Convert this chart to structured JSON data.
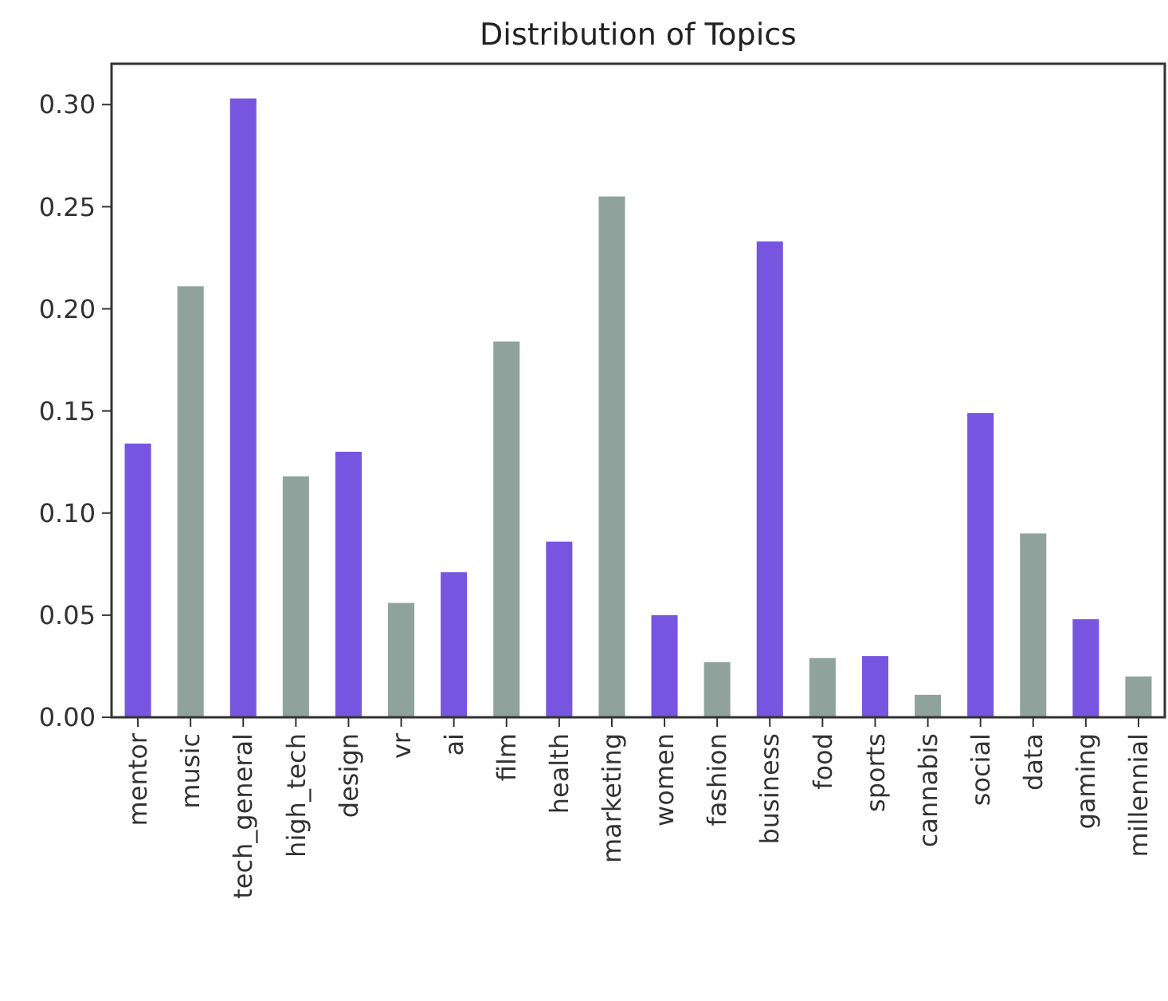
{
  "chart_data": {
    "type": "bar",
    "title": "Distribution of Topics",
    "categories": [
      "mentor",
      "music",
      "tech_general",
      "high_tech",
      "design",
      "vr",
      "ai",
      "film",
      "health",
      "marketing",
      "women",
      "fashion",
      "business",
      "food",
      "sports",
      "cannabis",
      "social",
      "data",
      "gaming",
      "millennial"
    ],
    "values": [
      0.134,
      0.211,
      0.303,
      0.118,
      0.13,
      0.056,
      0.071,
      0.184,
      0.086,
      0.255,
      0.05,
      0.027,
      0.233,
      0.029,
      0.03,
      0.011,
      0.149,
      0.09,
      0.048,
      0.02
    ],
    "colors": [
      "#7755e0",
      "#8fa39c",
      "#7755e0",
      "#8fa39c",
      "#7755e0",
      "#8fa39c",
      "#7755e0",
      "#8fa39c",
      "#7755e0",
      "#8fa39c",
      "#7755e0",
      "#8fa39c",
      "#7755e0",
      "#8fa39c",
      "#7755e0",
      "#8fa39c",
      "#7755e0",
      "#8fa39c",
      "#7755e0",
      "#8fa39c"
    ],
    "ylim": [
      0,
      0.32
    ],
    "yticks": [
      {
        "value": 0,
        "label": "0.00"
      },
      {
        "value": 0.05,
        "label": "0.05"
      },
      {
        "value": 0.1,
        "label": "0.10"
      },
      {
        "value": 0.15,
        "label": "0.15"
      },
      {
        "value": 0.2,
        "label": "0.20"
      },
      {
        "value": 0.25,
        "label": "0.25"
      },
      {
        "value": 0.3,
        "label": "0.30"
      }
    ],
    "grid": false
  }
}
